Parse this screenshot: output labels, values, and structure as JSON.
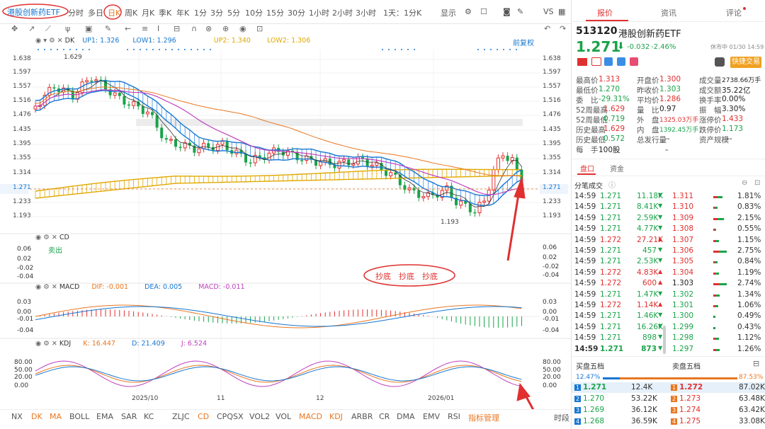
{
  "toolbar": {
    "symbol_tab": "港股创新药ETF",
    "periods": [
      "分时",
      "多日",
      "日K",
      "周K",
      "月K",
      "季K",
      "年K",
      "1分",
      "3分",
      "5分",
      "10分",
      "15分",
      "30分",
      "1小时",
      "2小时",
      "3小时",
      "1天：1分K"
    ],
    "show_label": "显示",
    "vs_label": "VS"
  },
  "overlay": {
    "dk": "DK",
    "up1_label": "UP1:",
    "up1": "1.326",
    "low1_label": "LOW1:",
    "low1": "1.296",
    "up2_label": "UP2:",
    "up2": "1.340",
    "low2_label": "LOW2:",
    "low2": "1.306",
    "fq": "前复权"
  },
  "price_ticks": [
    "1.638",
    "1.597",
    "1.557",
    "1.516",
    "1.476",
    "1.435",
    "1.395",
    "1.355",
    "1.314",
    "1.271",
    "1.233",
    "1.193"
  ],
  "high_label": "1.629",
  "low_label": "1.193",
  "cd": {
    "title": "CD",
    "ticks": [
      "0.06",
      "0.02",
      "-0.02",
      "-0.04"
    ],
    "sell": "卖出"
  },
  "annotation": "抄底　抄底　抄底",
  "macd": {
    "title": "MACD",
    "dif_label": "DIF:",
    "dif": "-0.001",
    "dea_label": "DEA:",
    "dea": "0.005",
    "m_label": "MACD:",
    "m": "-0.011",
    "ticks": [
      "0.03",
      "0.00",
      "-0.01",
      "-0.04"
    ]
  },
  "kdj": {
    "title": "KDJ",
    "k_label": "K:",
    "k": "16.447",
    "d_label": "D:",
    "d": "21.409",
    "j_label": "J:",
    "j": "6.524",
    "ticks": [
      "80.00",
      "50.00",
      "20.00",
      "0.00"
    ]
  },
  "dates": [
    "2025/10",
    "11",
    "12",
    "2026/01"
  ],
  "indicators": [
    "NX",
    "DK",
    "MA",
    "BOLL",
    "EMA",
    "SAR",
    "KC",
    "ZLJC",
    "CD",
    "CPQSX",
    "VOL2",
    "VOL",
    "MACD",
    "KDJ",
    "ARBR",
    "CR",
    "DMA",
    "EMV",
    "RSI",
    "指标管理",
    "时段"
  ],
  "right": {
    "tabs": [
      "报价",
      "资讯",
      "评论"
    ],
    "code": "513120",
    "name": "港股创新药ETF",
    "price": "1.271",
    "change": "-0.032",
    "pct": "-2.46%",
    "status": "休市中 01/30 14:59",
    "quick_trade": "快捷交易",
    "stats": [
      [
        "最高价",
        "1.313",
        "开盘价",
        "1.300",
        "成交量",
        "2738.66万手"
      ],
      [
        "最低价",
        "1.270",
        "昨收价",
        "1.303",
        "成交额",
        "35.22亿"
      ],
      [
        "委　比",
        "-29.31%",
        "平均价",
        "1.286",
        "换手率",
        "0.00%"
      ],
      [
        "52周最高",
        "1.629",
        "量　比",
        "0.97",
        "振　幅",
        "3.30%"
      ],
      [
        "52周最低",
        "0.719",
        "外　盘",
        "1325.03万手",
        "涨停价",
        "1.433"
      ],
      [
        "历史最高",
        "1.629",
        "内　盘",
        "1392.45万手",
        "跌停价",
        "1.173"
      ],
      [
        "历史最低",
        "0.572",
        "总发行量",
        "--",
        "资产规模",
        "--"
      ],
      [
        "每　手",
        "100股",
        "",
        "",
        "",
        ""
      ]
    ],
    "subtabs": [
      "盘口",
      "资金"
    ],
    "ticks_title": "分笔成交",
    "ticks": [
      [
        "14:59",
        "1.271",
        "11.18K"
      ],
      [
        "14:59",
        "1.271",
        "8.41K"
      ],
      [
        "14:59",
        "1.271",
        "2.59K"
      ],
      [
        "14:59",
        "1.271",
        "4.77K"
      ],
      [
        "14:59",
        "1.272",
        "27.21K"
      ],
      [
        "14:59",
        "1.271",
        "457"
      ],
      [
        "14:59",
        "1.271",
        "2.53K"
      ],
      [
        "14:59",
        "1.272",
        "4.83K"
      ],
      [
        "14:59",
        "1.272",
        "600"
      ],
      [
        "14:59",
        "1.271",
        "1.47K"
      ],
      [
        "14:59",
        "1.272",
        "1.14K"
      ],
      [
        "14:59",
        "1.271",
        "1.46K"
      ],
      [
        "14:59",
        "1.271",
        "16.26K"
      ],
      [
        "14:59",
        "1.271",
        "898"
      ],
      [
        "14:59",
        "1.271",
        "873"
      ]
    ],
    "dist": [
      [
        "1.311",
        "1.81%"
      ],
      [
        "1.310",
        "0.83%"
      ],
      [
        "1.309",
        "2.15%"
      ],
      [
        "1.308",
        "0.55%"
      ],
      [
        "1.307",
        "1.15%"
      ],
      [
        "1.306",
        "2.75%"
      ],
      [
        "1.305",
        "0.84%"
      ],
      [
        "1.304",
        "1.19%"
      ],
      [
        "1.303",
        "2.74%"
      ],
      [
        "1.302",
        "1.34%"
      ],
      [
        "1.301",
        "1.06%"
      ],
      [
        "1.300",
        "0.49%"
      ],
      [
        "1.299",
        "0.43%"
      ],
      [
        "1.298",
        "1.12%"
      ],
      [
        "1.297",
        "1.26%"
      ]
    ],
    "buy_title": "买盘五档",
    "sell_title": "卖盘五档",
    "buy_pct": "12.47%",
    "sell_pct": "87.53%",
    "buys": [
      [
        "1",
        "1.271",
        "12.4K"
      ],
      [
        "2",
        "1.270",
        "53.22K"
      ],
      [
        "3",
        "1.269",
        "36.12K"
      ],
      [
        "4",
        "1.268",
        "36.59K"
      ]
    ],
    "sells": [
      [
        "1",
        "1.272",
        "87.02K"
      ],
      [
        "2",
        "1.273",
        "63.48K"
      ],
      [
        "3",
        "1.274",
        "63.42K"
      ],
      [
        "4",
        "1.275",
        "33.08K"
      ]
    ]
  },
  "colors": {
    "up": "#e03030",
    "down": "#1aa34a",
    "accent": "#e87722",
    "blue": "#1677d2"
  }
}
